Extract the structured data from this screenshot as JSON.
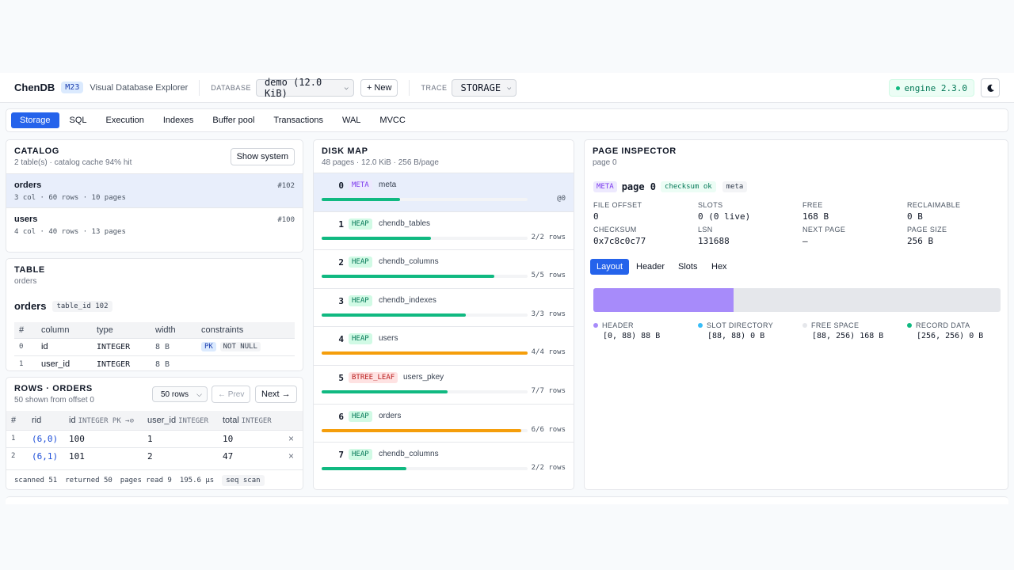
{
  "header": {
    "brand": "ChenDB",
    "milestone": "M23",
    "subtitle": "Visual Database Explorer",
    "database_label": "DATABASE",
    "database_value": "demo (12.0 KiB)",
    "new_button": "+ New",
    "trace_label": "TRACE",
    "trace_value": "STORAGE",
    "engine": "engine 2.3.0",
    "theme_icon": "moon-icon"
  },
  "tabs": [
    "Storage",
    "SQL",
    "Execution",
    "Indexes",
    "Buffer pool",
    "Transactions",
    "WAL",
    "MVCC"
  ],
  "active_tab": "Storage",
  "catalog": {
    "title": "CATALOG",
    "subtitle": "2 table(s) · catalog cache 94% hit",
    "show_system": "Show system",
    "items": [
      {
        "name": "orders",
        "meta": "3 col · 60 rows · 10 pages",
        "id": "#102"
      },
      {
        "name": "users",
        "meta": "4 col · 40 rows · 13 pages",
        "id": "#100"
      }
    ]
  },
  "table": {
    "title": "TABLE",
    "subtitle": "orders",
    "name": "orders",
    "table_id": "table_id 102",
    "columns_header": [
      "#",
      "column",
      "type",
      "width",
      "constraints"
    ],
    "columns": [
      {
        "idx": "0",
        "name": "id",
        "type": "INTEGER",
        "width": "8 B",
        "pk": "PK",
        "nn": "NOT NULL"
      },
      {
        "idx": "1",
        "name": "user_id",
        "type": "INTEGER",
        "width": "8 B",
        "pk": "",
        "nn": ""
      }
    ]
  },
  "rows": {
    "title": "ROWS · ORDERS",
    "subtitle": "50 shown from offset 0",
    "limit": "50 rows",
    "prev": "← Prev",
    "next": "Next →",
    "headers": {
      "hash": "#",
      "rid": "rid",
      "id": "id",
      "id_type": "INTEGER PK →⊘",
      "user_id": "user_id",
      "user_id_type": "INTEGER",
      "total": "total",
      "total_type": "INTEGER"
    },
    "data": [
      {
        "n": "1",
        "rid": "(6,0)",
        "id": "100",
        "user_id": "1",
        "total": "10"
      },
      {
        "n": "2",
        "rid": "(6,1)",
        "id": "101",
        "user_id": "2",
        "total": "47"
      }
    ],
    "delete_glyph": "×",
    "footer": {
      "scanned": "scanned 51",
      "returned": "returned 50",
      "pages": "pages read 9",
      "time": "195.6 µs",
      "mode": "seq scan"
    }
  },
  "disk_map": {
    "title": "DISK MAP",
    "subtitle": "48 pages · 12.0 KiB · 256 B/page",
    "pages": [
      {
        "num": "0",
        "type": "META",
        "kind": "meta",
        "name": "meta",
        "count": "@0",
        "fill": 0.38,
        "color": "#10b981"
      },
      {
        "num": "1",
        "type": "HEAP",
        "kind": "heap",
        "name": "chendb_tables",
        "count": "2/2 rows",
        "fill": 0.53,
        "color": "#10b981"
      },
      {
        "num": "2",
        "type": "HEAP",
        "kind": "heap",
        "name": "chendb_columns",
        "count": "5/5 rows",
        "fill": 0.84,
        "color": "#10b981"
      },
      {
        "num": "3",
        "type": "HEAP",
        "kind": "heap",
        "name": "chendb_indexes",
        "count": "3/3 rows",
        "fill": 0.7,
        "color": "#10b981"
      },
      {
        "num": "4",
        "type": "HEAP",
        "kind": "heap",
        "name": "users",
        "count": "4/4 rows",
        "fill": 1.0,
        "color": "#f59e0b"
      },
      {
        "num": "5",
        "type": "BTREE_LEAF",
        "kind": "btree",
        "name": "users_pkey",
        "count": "7/7 rows",
        "fill": 0.61,
        "color": "#10b981"
      },
      {
        "num": "6",
        "type": "HEAP",
        "kind": "heap",
        "name": "orders",
        "count": "6/6 rows",
        "fill": 0.97,
        "color": "#f59e0b"
      },
      {
        "num": "7",
        "type": "HEAP",
        "kind": "heap",
        "name": "chendb_columns",
        "count": "2/2 rows",
        "fill": 0.41,
        "color": "#10b981"
      }
    ]
  },
  "inspector": {
    "title": "PAGE INSPECTOR",
    "subtitle": "page 0",
    "type": "META",
    "page": "page 0",
    "checksum_ok": "checksum ok",
    "kind": "meta",
    "fields": [
      {
        "k": "FILE OFFSET",
        "v": "0"
      },
      {
        "k": "SLOTS",
        "v": "0 (0 live)"
      },
      {
        "k": "FREE",
        "v": "168 B"
      },
      {
        "k": "RECLAIMABLE",
        "v": "0 B"
      },
      {
        "k": "CHECKSUM",
        "v": "0x7c8c0c77"
      },
      {
        "k": "LSN",
        "v": "131688"
      },
      {
        "k": "NEXT PAGE",
        "v": "—"
      },
      {
        "k": "PAGE SIZE",
        "v": "256 B"
      }
    ],
    "tabs": [
      "Layout",
      "Header",
      "Slots",
      "Hex"
    ],
    "active_tab": "Layout",
    "layout_header_fraction": 0.34375,
    "legend": [
      {
        "k": "HEADER",
        "v": "[0, 88) 88 B",
        "color": "#a78bfa"
      },
      {
        "k": "SLOT DIRECTORY",
        "v": "[88, 88) 0 B",
        "color": "#38bdf8"
      },
      {
        "k": "FREE SPACE",
        "v": "[88, 256) 168 B",
        "color": "#e5e7eb"
      },
      {
        "k": "RECORD DATA",
        "v": "[256, 256) 0 B",
        "color": "#10b981"
      }
    ]
  }
}
